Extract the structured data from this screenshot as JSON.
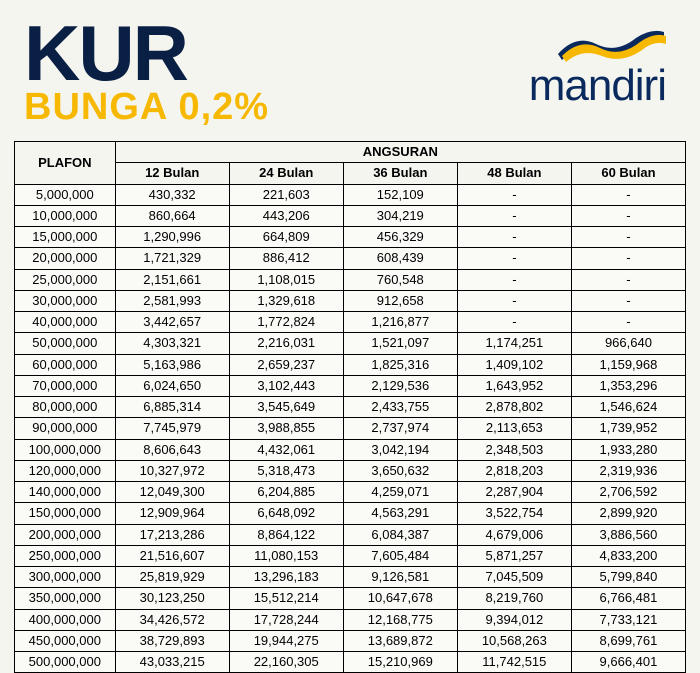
{
  "header": {
    "title": "KUR",
    "subtitle": "BUNGA 0,2%",
    "logo_text": "mandiri",
    "title_color": "#0a1f44",
    "subtitle_color": "#f6b800",
    "logo_color": "#0a2a5e",
    "ribbon_colors": [
      "#0a2a5e",
      "#f6b800"
    ]
  },
  "table": {
    "type": "table",
    "background_color": "#f5f5f0",
    "border_color": "#000000",
    "header_fontsize": 13,
    "cell_fontsize": 13,
    "plafon_header": "PLAFON",
    "angsuran_header": "ANGSURAN",
    "tenor_headers": [
      "12 Bulan",
      "24 Bulan",
      "36 Bulan",
      "48 Bulan",
      "60 Bulan"
    ],
    "rows": [
      {
        "plafon": "5,000,000",
        "vals": [
          "430,332",
          "221,603",
          "152,109",
          "-",
          "-"
        ]
      },
      {
        "plafon": "10,000,000",
        "vals": [
          "860,664",
          "443,206",
          "304,219",
          "-",
          "-"
        ]
      },
      {
        "plafon": "15,000,000",
        "vals": [
          "1,290,996",
          "664,809",
          "456,329",
          "-",
          "-"
        ]
      },
      {
        "plafon": "20,000,000",
        "vals": [
          "1,721,329",
          "886,412",
          "608,439",
          "-",
          "-"
        ]
      },
      {
        "plafon": "25,000,000",
        "vals": [
          "2,151,661",
          "1,108,015",
          "760,548",
          "-",
          "-"
        ]
      },
      {
        "plafon": "30,000,000",
        "vals": [
          "2,581,993",
          "1,329,618",
          "912,658",
          "-",
          "-"
        ]
      },
      {
        "plafon": "40,000,000",
        "vals": [
          "3,442,657",
          "1,772,824",
          "1,216,877",
          "-",
          "-"
        ]
      },
      {
        "plafon": "50,000,000",
        "vals": [
          "4,303,321",
          "2,216,031",
          "1,521,097",
          "1,174,251",
          "966,640"
        ]
      },
      {
        "plafon": "60,000,000",
        "vals": [
          "5,163,986",
          "2,659,237",
          "1,825,316",
          "1,409,102",
          "1,159,968"
        ]
      },
      {
        "plafon": "70,000,000",
        "vals": [
          "6,024,650",
          "3,102,443",
          "2,129,536",
          "1,643,952",
          "1,353,296"
        ]
      },
      {
        "plafon": "80,000,000",
        "vals": [
          "6,885,314",
          "3,545,649",
          "2,433,755",
          "2,878,802",
          "1,546,624"
        ]
      },
      {
        "plafon": "90,000,000",
        "vals": [
          "7,745,979",
          "3,988,855",
          "2,737,974",
          "2,113,653",
          "1,739,952"
        ]
      },
      {
        "plafon": "100,000,000",
        "vals": [
          "8,606,643",
          "4,432,061",
          "3,042,194",
          "2,348,503",
          "1,933,280"
        ]
      },
      {
        "plafon": "120,000,000",
        "vals": [
          "10,327,972",
          "5,318,473",
          "3,650,632",
          "2,818,203",
          "2,319,936"
        ]
      },
      {
        "plafon": "140,000,000",
        "vals": [
          "12,049,300",
          "6,204,885",
          "4,259,071",
          "2,287,904",
          "2,706,592"
        ]
      },
      {
        "plafon": "150,000,000",
        "vals": [
          "12,909,964",
          "6,648,092",
          "4,563,291",
          "3,522,754",
          "2,899,920"
        ]
      },
      {
        "plafon": "200,000,000",
        "vals": [
          "17,213,286",
          "8,864,122",
          "6,084,387",
          "4,679,006",
          "3,886,560"
        ]
      },
      {
        "plafon": "250,000,000",
        "vals": [
          "21,516,607",
          "11,080,153",
          "7,605,484",
          "5,871,257",
          "4,833,200"
        ]
      },
      {
        "plafon": "300,000,000",
        "vals": [
          "25,819,929",
          "13,296,183",
          "9,126,581",
          "7,045,509",
          "5,799,840"
        ]
      },
      {
        "plafon": "350,000,000",
        "vals": [
          "30,123,250",
          "15,512,214",
          "10,647,678",
          "8,219,760",
          "6,766,481"
        ]
      },
      {
        "plafon": "400,000,000",
        "vals": [
          "34,426,572",
          "17,728,244",
          "12,168,775",
          "9,394,012",
          "7,733,121"
        ]
      },
      {
        "plafon": "450,000,000",
        "vals": [
          "38,729,893",
          "19,944,275",
          "13,689,872",
          "10,568,263",
          "8,699,761"
        ]
      },
      {
        "plafon": "500,000,000",
        "vals": [
          "43,033,215",
          "22,160,305",
          "15,210,969",
          "11,742,515",
          "9,666,401"
        ]
      }
    ]
  }
}
